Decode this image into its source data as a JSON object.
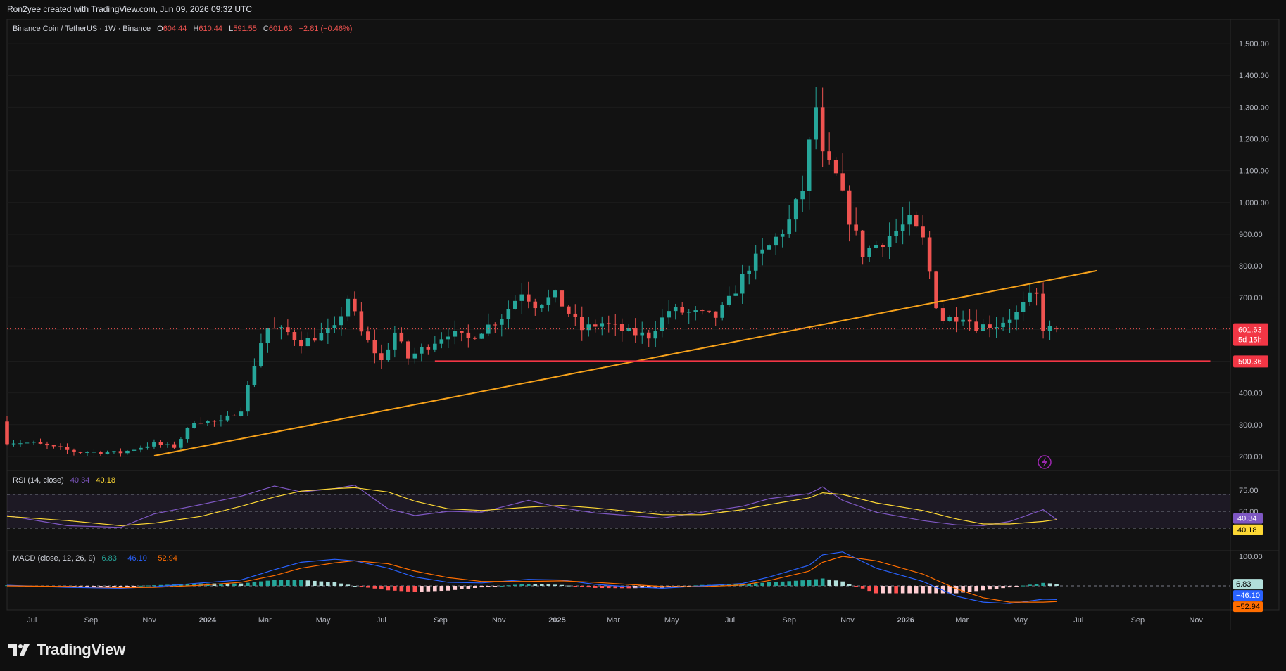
{
  "header": {
    "attribution": "Ron2yee created with TradingView.com, Jun 09, 2026 09:32 UTC"
  },
  "legend": {
    "symbol": "Binance Coin / TetherUS · 1W · Binance",
    "o_label": "O",
    "o_value": "604.44",
    "h_label": "H",
    "h_value": "610.44",
    "l_label": "L",
    "l_value": "591.55",
    "c_label": "C",
    "c_value": "601.63",
    "change": "−2.81 (−0.46%)"
  },
  "price_axis": {
    "ticks": [
      "1,500.00",
      "1,400.00",
      "1,300.00",
      "1,200.00",
      "1,100.00",
      "1,000.00",
      "900.00",
      "800.00",
      "700.00",
      "600.00",
      "500.00",
      "400.00",
      "300.00",
      "200.00"
    ],
    "tick_values": [
      1500,
      1400,
      1300,
      1200,
      1100,
      1000,
      900,
      800,
      700,
      600,
      500,
      400,
      300,
      200
    ],
    "last_price_label": "601.63",
    "countdown_label": "5d 15h",
    "level_label": "500.36"
  },
  "time_axis": {
    "labels": [
      "Jul",
      "Sep",
      "Nov",
      "2024",
      "Mar",
      "May",
      "Jul",
      "Sep",
      "Nov",
      "2025",
      "Mar",
      "May",
      "Jul",
      "Sep",
      "Nov",
      "2026",
      "Mar",
      "May",
      "Jul",
      "Sep",
      "Nov"
    ]
  },
  "rsi": {
    "title": "RSI (14, close)",
    "value": "40.34",
    "ma_value": "40.18",
    "levels": [
      "75.00",
      "50.00"
    ]
  },
  "macd": {
    "title": "MACD (close, 12, 26, 9)",
    "hist_value": "6.83",
    "macd_value": "−46.10",
    "signal_value": "−52.94",
    "axis_label": "100.00"
  },
  "footer": {
    "brand": "TradingView"
  },
  "colors": {
    "up": "#26a69a",
    "down": "#ef5350",
    "trendline": "#f7a21b",
    "level": "#f23645",
    "rsi_line": "#7e57c2",
    "rsi_ma": "#fdd835",
    "macd_line": "#2962ff",
    "signal_line": "#ff6d00",
    "background": "#0f0f0f"
  },
  "chart_data": [
    {
      "type": "candlestick",
      "title": "Binance Coin / TetherUS · 1W · Binance",
      "ylim": [
        160,
        1560
      ],
      "x_range": [
        "2023-06-05",
        "2026-12-07"
      ],
      "trendline": {
        "from": [
          "2023-11-06",
          202
        ],
        "to": [
          "2026-07-20",
          785
        ]
      },
      "horizontal_level": {
        "from": "2024-08-26",
        "to": "2026-11-16",
        "value": 500.36
      },
      "last_candle": {
        "date": "2026-06-08",
        "open": 604.44,
        "high": 610.44,
        "low": 591.55,
        "close": 601.63
      },
      "anchors": [
        [
          "2023-06-05",
          310
        ],
        [
          "2023-06-12",
          245
        ],
        [
          "2023-07-10",
          242
        ],
        [
          "2023-08-21",
          215
        ],
        [
          "2023-10-09",
          212
        ],
        [
          "2023-11-13",
          240
        ],
        [
          "2023-12-04",
          230
        ],
        [
          "2023-12-25",
          312
        ],
        [
          "2024-01-22",
          308
        ],
        [
          "2024-02-12",
          350
        ],
        [
          "2024-03-04",
          560
        ],
        [
          "2024-03-11",
          605
        ],
        [
          "2024-04-01",
          590
        ],
        [
          "2024-04-15",
          560
        ],
        [
          "2024-05-20",
          600
        ],
        [
          "2024-06-03",
          700
        ],
        [
          "2024-06-17",
          590
        ],
        [
          "2024-07-08",
          500
        ],
        [
          "2024-07-22",
          590
        ],
        [
          "2024-08-05",
          510
        ],
        [
          "2024-08-26",
          550
        ],
        [
          "2024-09-16",
          590
        ],
        [
          "2024-10-07",
          570
        ],
        [
          "2024-11-11",
          640
        ],
        [
          "2024-12-02",
          720
        ],
        [
          "2024-12-16",
          680
        ],
        [
          "2025-01-06",
          705
        ],
        [
          "2025-02-03",
          600
        ],
        [
          "2025-02-24",
          620
        ],
        [
          "2025-03-24",
          590
        ],
        [
          "2025-04-14",
          580
        ],
        [
          "2025-05-05",
          660
        ],
        [
          "2025-06-02",
          650
        ],
        [
          "2025-06-23",
          640
        ],
        [
          "2025-07-07",
          690
        ],
        [
          "2025-07-28",
          800
        ],
        [
          "2025-08-18",
          860
        ],
        [
          "2025-09-08",
          940
        ],
        [
          "2025-09-22",
          1040
        ],
        [
          "2025-09-29",
          1180
        ],
        [
          "2025-10-06",
          1300
        ],
        [
          "2025-10-13",
          1140
        ],
        [
          "2025-10-27",
          1080
        ],
        [
          "2025-11-10",
          950
        ],
        [
          "2025-11-24",
          840
        ],
        [
          "2025-12-15",
          880
        ],
        [
          "2026-01-12",
          940
        ],
        [
          "2026-01-26",
          880
        ],
        [
          "2026-02-09",
          680
        ],
        [
          "2026-02-16",
          630
        ],
        [
          "2026-03-09",
          645
        ],
        [
          "2026-03-23",
          610
        ],
        [
          "2026-04-13",
          615
        ],
        [
          "2026-05-04",
          650
        ],
        [
          "2026-05-18",
          700
        ],
        [
          "2026-05-25",
          705
        ],
        [
          "2026-06-01",
          605
        ],
        [
          "2026-06-08",
          601.63
        ]
      ]
    },
    {
      "type": "line",
      "title": "RSI (14, close)",
      "ylim": [
        0,
        100
      ],
      "levels": [
        70,
        50,
        30
      ],
      "series": [
        {
          "name": "RSI",
          "x": [
            "2023-06-05",
            "2023-08-07",
            "2023-10-02",
            "2023-11-06",
            "2023-12-25",
            "2024-02-05",
            "2024-03-11",
            "2024-04-08",
            "2024-05-13",
            "2024-06-03",
            "2024-07-08",
            "2024-08-05",
            "2024-09-09",
            "2024-10-14",
            "2024-12-02",
            "2025-01-06",
            "2025-02-10",
            "2025-03-17",
            "2025-04-21",
            "2025-06-02",
            "2025-07-14",
            "2025-08-11",
            "2025-09-22",
            "2025-10-06",
            "2025-10-27",
            "2025-12-01",
            "2026-01-19",
            "2026-02-23",
            "2026-03-23",
            "2026-04-20",
            "2026-05-25",
            "2026-06-08"
          ],
          "values": [
            45,
            33,
            31,
            47,
            58,
            68,
            80,
            73,
            77,
            81,
            53,
            45,
            50,
            49,
            63,
            54,
            48,
            45,
            42,
            49,
            56,
            65,
            71,
            79,
            63,
            49,
            39,
            34,
            33,
            38,
            52,
            40.34
          ]
        },
        {
          "name": "RSI-based MA",
          "x": [
            "2023-06-05",
            "2023-08-07",
            "2023-10-02",
            "2023-11-06",
            "2023-12-25",
            "2024-02-05",
            "2024-03-11",
            "2024-04-08",
            "2024-05-13",
            "2024-06-03",
            "2024-07-08",
            "2024-08-05",
            "2024-09-09",
            "2024-10-14",
            "2024-12-02",
            "2025-01-06",
            "2025-02-10",
            "2025-03-17",
            "2025-04-21",
            "2025-06-02",
            "2025-07-14",
            "2025-08-11",
            "2025-09-22",
            "2025-10-06",
            "2025-10-27",
            "2025-12-01",
            "2026-01-19",
            "2026-02-23",
            "2026-03-23",
            "2026-04-20",
            "2026-05-25",
            "2026-06-08"
          ],
          "values": [
            44,
            39,
            33,
            36,
            44,
            56,
            67,
            74,
            77,
            78,
            73,
            62,
            53,
            51,
            55,
            57,
            54,
            50,
            46,
            46,
            52,
            58,
            66,
            72,
            70,
            60,
            51,
            41,
            35,
            35,
            38,
            40.18
          ]
        }
      ]
    },
    {
      "type": "line",
      "title": "MACD (close, 12, 26, 9)",
      "ylim": [
        -75,
        130
      ],
      "series": [
        {
          "name": "MACD",
          "x": [
            "2023-06-05",
            "2023-08-07",
            "2023-10-02",
            "2023-11-06",
            "2023-12-25",
            "2024-02-05",
            "2024-03-11",
            "2024-04-08",
            "2024-05-13",
            "2024-06-03",
            "2024-07-08",
            "2024-08-05",
            "2024-09-09",
            "2024-10-14",
            "2024-12-02",
            "2025-01-06",
            "2025-02-10",
            "2025-03-17",
            "2025-04-21",
            "2025-06-02",
            "2025-07-14",
            "2025-08-11",
            "2025-09-22",
            "2025-10-06",
            "2025-10-27",
            "2025-12-01",
            "2026-01-19",
            "2026-02-23",
            "2026-03-23",
            "2026-04-20",
            "2026-05-25",
            "2026-06-08"
          ],
          "values": [
            2,
            -5,
            -8,
            -3,
            10,
            20,
            55,
            80,
            90,
            85,
            60,
            30,
            12,
            10,
            22,
            20,
            5,
            -3,
            -8,
            0,
            8,
            30,
            70,
            105,
            115,
            60,
            15,
            -35,
            -55,
            -60,
            -45,
            -46.1
          ]
        },
        {
          "name": "Signal",
          "x": [
            "2023-06-05",
            "2023-08-07",
            "2023-10-02",
            "2023-11-06",
            "2023-12-25",
            "2024-02-05",
            "2024-03-11",
            "2024-04-08",
            "2024-05-13",
            "2024-06-03",
            "2024-07-08",
            "2024-08-05",
            "2024-09-09",
            "2024-10-14",
            "2024-12-02",
            "2025-01-06",
            "2025-02-10",
            "2025-03-17",
            "2025-04-21",
            "2025-06-02",
            "2025-07-14",
            "2025-08-11",
            "2025-09-22",
            "2025-10-06",
            "2025-10-27",
            "2025-12-01",
            "2026-01-19",
            "2026-02-23",
            "2026-03-23",
            "2026-04-20",
            "2026-05-25",
            "2026-06-08"
          ],
          "values": [
            0,
            -2,
            -6,
            -5,
            2,
            12,
            35,
            60,
            78,
            85,
            75,
            50,
            28,
            15,
            15,
            17,
            12,
            5,
            -2,
            -3,
            3,
            18,
            50,
            80,
            100,
            85,
            40,
            -10,
            -40,
            -55,
            -55,
            -52.94
          ]
        }
      ]
    }
  ]
}
